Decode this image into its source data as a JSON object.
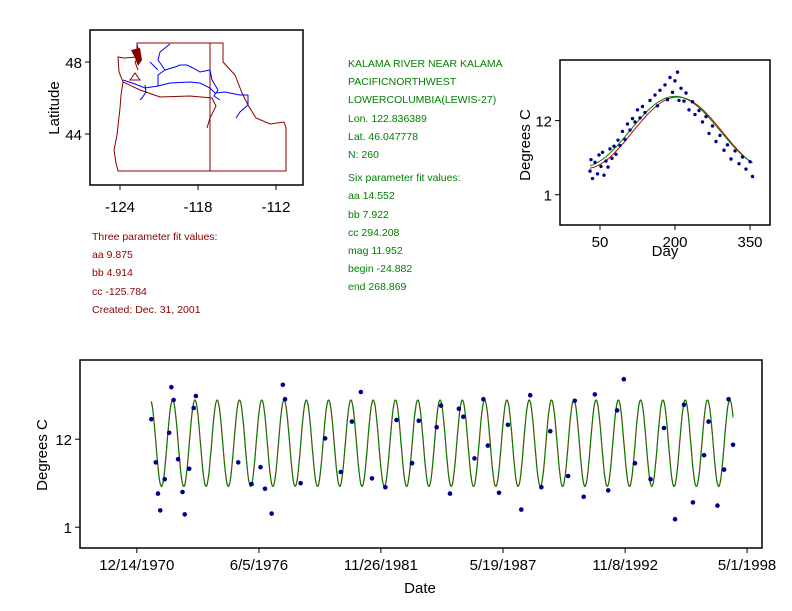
{
  "station": {
    "name": "KALAMA RIVER NEAR KALAMA",
    "region": "PACIFICNORTHWEST",
    "basin": "LOWERCOLUMBIA(LEWIS-27)",
    "lon": "Lon. 122.836389",
    "lat": "Lat. 46.047778",
    "n": "N: 260"
  },
  "six_param": {
    "title": "Six parameter fit values:",
    "aa": "aa 14.552",
    "bb": "bb 7.922",
    "cc": "cc 294.208",
    "mag": "mag 11.952",
    "begin": "begin -24.882",
    "end": "end 268.869"
  },
  "three_param": {
    "title": "Three parameter fit values:",
    "aa": "aa 9.875",
    "bb": "bb 4.914",
    "cc": "cc -125.784",
    "created": "Created:   Dec. 31, 2001"
  },
  "colors": {
    "fit3": "#c00000",
    "fit6": "#008000",
    "points": "#00008b",
    "map_border": "#8b0000",
    "rivers": "#0000ff"
  },
  "chart_data": [
    {
      "type": "map",
      "ylabel": "Latitude",
      "xticks": [
        "-124",
        "-118",
        "-112"
      ],
      "yticks": [
        "48",
        "44"
      ],
      "site_marker": {
        "lon": -122.84,
        "lat": 46.05
      }
    },
    {
      "type": "scatter",
      "xlabel": "Day",
      "ylabel": "Degrees C",
      "xticks": [
        50,
        200,
        350
      ],
      "yticks": [
        {
          "value": 1,
          "label": "1"
        },
        {
          "value": 12,
          "label": "12"
        }
      ],
      "xlim": [
        -30,
        390
      ],
      "ylim": [
        -3.5,
        21
      ],
      "fits": [
        {
          "name": "three parameter",
          "color": "#c00000",
          "mean": 10.2,
          "amp": 5.3,
          "peak_day": 205
        },
        {
          "name": "six parameter",
          "color": "#008000",
          "mean": 10.4,
          "amp": 5.2,
          "peak_day": 200
        }
      ],
      "points": [
        [
          30,
          4.5
        ],
        [
          32,
          6.2
        ],
        [
          35,
          3.4
        ],
        [
          40,
          5.8
        ],
        [
          45,
          4.1
        ],
        [
          48,
          6.9
        ],
        [
          52,
          5.2
        ],
        [
          55,
          7.3
        ],
        [
          58,
          3.9
        ],
        [
          62,
          6.0
        ],
        [
          66,
          5.1
        ],
        [
          70,
          7.8
        ],
        [
          74,
          6.4
        ],
        [
          78,
          8.2
        ],
        [
          82,
          7.0
        ],
        [
          86,
          9.1
        ],
        [
          90,
          8.3
        ],
        [
          95,
          10.4
        ],
        [
          100,
          9.2
        ],
        [
          105,
          11.5
        ],
        [
          110,
          10.6
        ],
        [
          115,
          12.3
        ],
        [
          120,
          11.8
        ],
        [
          125,
          13.6
        ],
        [
          130,
          12.4
        ],
        [
          135,
          14.1
        ],
        [
          140,
          13.2
        ],
        [
          150,
          15.0
        ],
        [
          160,
          15.8
        ],
        [
          165,
          14.2
        ],
        [
          170,
          16.5
        ],
        [
          180,
          17.3
        ],
        [
          185,
          15.1
        ],
        [
          190,
          18.4
        ],
        [
          195,
          16.2
        ],
        [
          200,
          17.9
        ],
        [
          205,
          19.2
        ],
        [
          208,
          15.0
        ],
        [
          212,
          16.8
        ],
        [
          218,
          14.9
        ],
        [
          222,
          16.1
        ],
        [
          228,
          13.6
        ],
        [
          235,
          14.8
        ],
        [
          240,
          12.9
        ],
        [
          248,
          13.5
        ],
        [
          255,
          11.8
        ],
        [
          262,
          12.6
        ],
        [
          268,
          10.1
        ],
        [
          275,
          11.2
        ],
        [
          282,
          8.9
        ],
        [
          290,
          9.8
        ],
        [
          298,
          7.6
        ],
        [
          305,
          8.4
        ],
        [
          312,
          6.3
        ],
        [
          320,
          7.5
        ],
        [
          328,
          5.6
        ],
        [
          335,
          6.6
        ],
        [
          342,
          4.8
        ],
        [
          350,
          5.9
        ],
        [
          355,
          3.7
        ]
      ]
    },
    {
      "type": "line",
      "xlabel": "Date",
      "ylabel": "Degrees C",
      "xticks": [
        {
          "value": 1970.95,
          "label": "12/14/1970"
        },
        {
          "value": 1976.43,
          "label": "6/5/1976"
        },
        {
          "value": 1981.9,
          "label": "11/26/1981"
        },
        {
          "value": 1987.38,
          "label": "5/19/1987"
        },
        {
          "value": 1992.86,
          "label": "11/8/1992"
        },
        {
          "value": 1998.33,
          "label": "5/1/1998"
        }
      ],
      "yticks": [
        {
          "value": 1,
          "label": "1"
        },
        {
          "value": 12,
          "label": "12"
        }
      ],
      "xlim": [
        1968.4,
        1999.0
      ],
      "ylim": [
        -1.6,
        21.9
      ],
      "fit_range": [
        1971.6,
        1997.7
      ],
      "fits": [
        {
          "name": "three parameter",
          "color": "#c00000",
          "mean": 11.5,
          "amp": 5.4,
          "peak_phase": 0.56
        },
        {
          "name": "six parameter",
          "color": "#008000",
          "mean": 11.5,
          "amp": 5.4,
          "peak_phase": 0.55
        }
      ],
      "points": [
        [
          1971.6,
          14.5
        ],
        [
          1971.8,
          9.1
        ],
        [
          1971.9,
          5.2
        ],
        [
          1972.0,
          3.1
        ],
        [
          1972.2,
          7.0
        ],
        [
          1972.4,
          12.8
        ],
        [
          1972.5,
          18.5
        ],
        [
          1972.6,
          16.9
        ],
        [
          1972.8,
          9.5
        ],
        [
          1973.0,
          5.4
        ],
        [
          1973.1,
          2.6
        ],
        [
          1973.3,
          8.3
        ],
        [
          1973.5,
          15.9
        ],
        [
          1973.6,
          17.4
        ],
        [
          1975.5,
          9.1
        ],
        [
          1976.1,
          6.4
        ],
        [
          1976.5,
          8.5
        ],
        [
          1976.7,
          5.8
        ],
        [
          1977.0,
          2.7
        ],
        [
          1977.5,
          18.8
        ],
        [
          1977.6,
          17.0
        ],
        [
          1978.3,
          6.5
        ],
        [
          1979.4,
          12.1
        ],
        [
          1980.1,
          7.9
        ],
        [
          1980.6,
          14.2
        ],
        [
          1981.0,
          17.9
        ],
        [
          1981.5,
          7.1
        ],
        [
          1982.1,
          6.0
        ],
        [
          1982.6,
          14.4
        ],
        [
          1983.3,
          9.0
        ],
        [
          1983.6,
          14.3
        ],
        [
          1984.4,
          13.5
        ],
        [
          1984.6,
          16.2
        ],
        [
          1985.0,
          5.2
        ],
        [
          1985.4,
          15.8
        ],
        [
          1985.6,
          14.8
        ],
        [
          1986.1,
          9.6
        ],
        [
          1986.5,
          17.0
        ],
        [
          1986.7,
          11.2
        ],
        [
          1987.2,
          5.3
        ],
        [
          1987.6,
          13.8
        ],
        [
          1988.2,
          3.2
        ],
        [
          1988.6,
          17.5
        ],
        [
          1989.1,
          6.0
        ],
        [
          1989.5,
          13.0
        ],
        [
          1990.3,
          7.4
        ],
        [
          1990.6,
          16.8
        ],
        [
          1991.0,
          4.8
        ],
        [
          1991.5,
          17.6
        ],
        [
          1992.1,
          5.6
        ],
        [
          1992.5,
          15.6
        ],
        [
          1992.8,
          19.5
        ],
        [
          1993.3,
          9.0
        ],
        [
          1994.0,
          7.0
        ],
        [
          1994.6,
          13.4
        ],
        [
          1995.1,
          2.0
        ],
        [
          1995.5,
          16.3
        ],
        [
          1995.9,
          4.1
        ],
        [
          1996.4,
          10.0
        ],
        [
          1996.6,
          14.2
        ],
        [
          1997.0,
          3.7
        ],
        [
          1997.3,
          8.2
        ],
        [
          1997.5,
          17.0
        ],
        [
          1997.7,
          11.3
        ]
      ]
    }
  ]
}
